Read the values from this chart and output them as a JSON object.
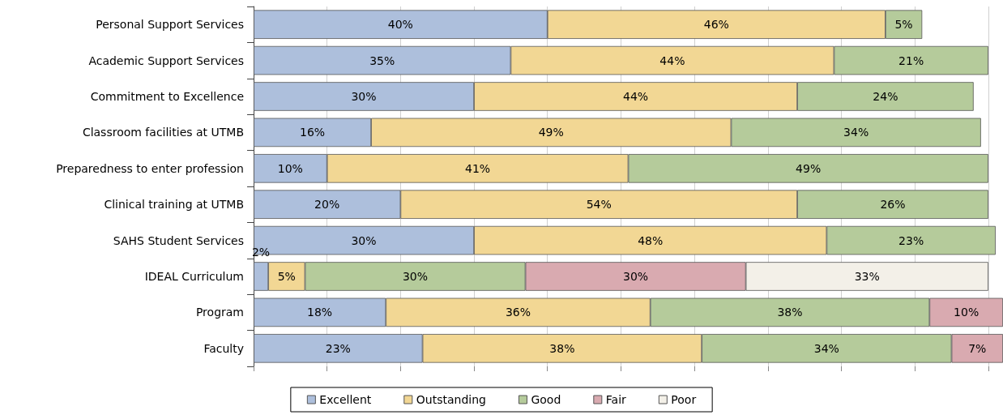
{
  "chart_data": {
    "type": "bar",
    "orientation": "horizontal",
    "stacked": true,
    "categories": [
      "Personal Support Services",
      "Academic Support Services",
      "Commitment to Excellence",
      "Classroom facilities at UTMB",
      "Preparedness to enter profession",
      "Clinical training at UTMB",
      "SAHS Student Services",
      "IDEAL Curriculum",
      "Program",
      "Faculty"
    ],
    "series": [
      {
        "name": "Excellent",
        "color": "#adbfdc",
        "values": [
          40,
          35,
          30,
          16,
          10,
          20,
          30,
          2,
          18,
          23
        ],
        "value_labels": [
          "40%",
          "35%",
          "30%",
          "16%",
          "10%",
          "20%",
          "30%",
          "2%",
          "18%",
          "23%"
        ]
      },
      {
        "name": "Outstanding",
        "color": "#f2d794",
        "values": [
          46,
          44,
          44,
          49,
          41,
          54,
          48,
          5,
          36,
          38
        ],
        "value_labels": [
          "46%",
          "44%",
          "44%",
          "49%",
          "41%",
          "54%",
          "48%",
          "5%",
          "36%",
          "38%"
        ]
      },
      {
        "name": "Good",
        "color": "#b5cb9b",
        "values": [
          5,
          21,
          24,
          34,
          49,
          26,
          23,
          30,
          38,
          34
        ],
        "value_labels": [
          "5%",
          "21%",
          "24%",
          "34%",
          "49%",
          "26%",
          "23%",
          "30%",
          "38%",
          "34%"
        ]
      },
      {
        "name": "Fair",
        "color": "#d9aab0",
        "values": [
          null,
          null,
          null,
          null,
          null,
          null,
          null,
          30,
          10,
          7
        ],
        "value_labels": [
          null,
          null,
          null,
          null,
          null,
          null,
          null,
          "30%",
          "10%",
          "7%"
        ]
      },
      {
        "name": "Poor",
        "color": "#f3f0e8",
        "values": [
          null,
          null,
          null,
          null,
          null,
          null,
          null,
          33,
          null,
          null
        ],
        "value_labels": [
          null,
          null,
          null,
          null,
          null,
          null,
          null,
          "33%",
          null,
          null
        ]
      }
    ],
    "xlim": [
      0,
      102
    ],
    "xticks": [
      {
        "value": 0,
        "label": null
      },
      {
        "value": 10,
        "label": null
      },
      {
        "value": 20,
        "label": null
      },
      {
        "value": 30,
        "label": null
      },
      {
        "value": 40,
        "label": null
      },
      {
        "value": 50,
        "label": null
      },
      {
        "value": 60,
        "label": null
      },
      {
        "value": 70,
        "label": null
      },
      {
        "value": 80,
        "label": null
      },
      {
        "value": 90,
        "label": null
      },
      {
        "value": 100,
        "label": null
      }
    ],
    "grid": "x",
    "legend": "bottom",
    "tick_labels": "y"
  }
}
